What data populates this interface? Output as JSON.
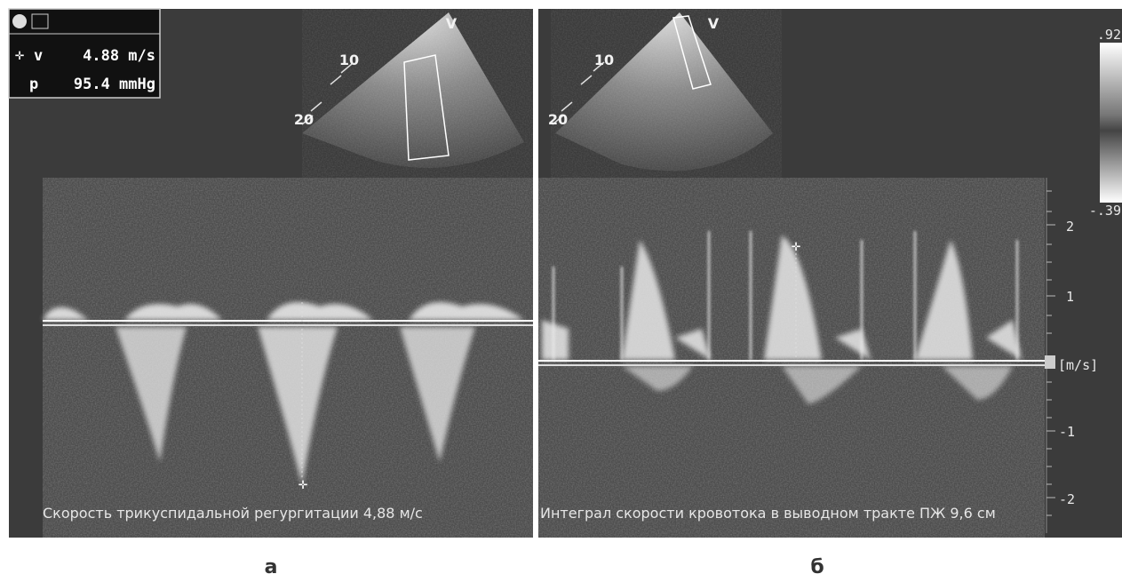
{
  "panels": [
    {
      "label": "а",
      "view_marker": "V",
      "depth_marks": [
        "10",
        "20"
      ],
      "measurements": [
        {
          "name": "v",
          "value": "4.88 m/s"
        },
        {
          "name": "p",
          "value": "95.4 mmHg"
        }
      ],
      "caption": "Скорость трикуспидальной регургитации 4,88 м/с"
    },
    {
      "label": "б",
      "view_marker": "V",
      "depth_marks": [
        "10",
        "20"
      ],
      "color_scale": {
        "max": ".92",
        "min": "-.39"
      },
      "velocity_scale": {
        "unit": "[m/s]",
        "ticks": [
          "2",
          "1",
          "-1",
          "-2"
        ]
      },
      "caption": "Интеграл скорости кровотока в выводном тракте ПЖ 9,6 см"
    }
  ]
}
